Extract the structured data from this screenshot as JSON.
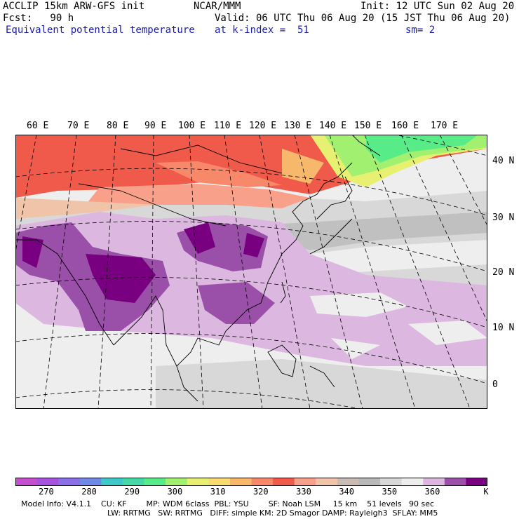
{
  "header": {
    "line1_left": "ACCLIP 15km ARW-GFS init",
    "line1_center": "NCAR/MMM",
    "line1_right": "Init: 12 UTC Sun 02 Aug 20",
    "line2_left": "Fcst:   90 h",
    "line2_right": "Valid: 06 UTC Thu 06 Aug 20 (15 JST Thu 06 Aug 20)",
    "line3_left": "Equivalent potential temperature",
    "line3_center": "at k-index =  51",
    "line3_right": "sm= 2"
  },
  "map": {
    "lon_labels": [
      "60 E",
      "70 E",
      "80 E",
      "90 E",
      "100 E",
      "110 E",
      "120 E",
      "130 E",
      "140 E",
      "150 E",
      "160 E",
      "170 E"
    ],
    "lat_labels": [
      "40 N",
      "30 N",
      "20 N",
      "10 N",
      "0"
    ]
  },
  "colorbar": {
    "colors": [
      "#c44fce",
      "#a552dc",
      "#8a6fe6",
      "#6f8ae6",
      "#3ec8c8",
      "#44d9a6",
      "#58ec88",
      "#a2f070",
      "#e8f072",
      "#f8dc72",
      "#f8b86c",
      "#f8886a",
      "#f05a4a",
      "#f8a08a",
      "#f0c4a8",
      "#c8bcb4",
      "#b8b8b8",
      "#d8d8d8",
      "#eeeeee",
      "#dcb8e0",
      "#9a50a8",
      "#780080"
    ],
    "tick_labels": [
      "270",
      "280",
      "290",
      "300",
      "310",
      "320",
      "330",
      "340",
      "350",
      "360"
    ],
    "unit": "K"
  },
  "footer": {
    "line1": "Model Info: V4.1.1    CU: KF        MP: WDM 6class  PBL: YSU        SF: Noah LSM     15 km    51 levels   90 sec",
    "line2": "LW: RRTMG   SW: RRTMG   DIFF: simple KM: 2D Smagor DAMP: Rayleigh3  SFLAY: MM5"
  }
}
